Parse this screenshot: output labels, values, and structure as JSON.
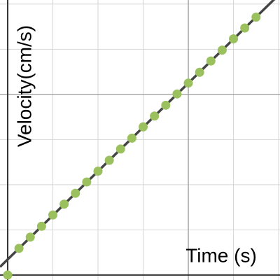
{
  "chart_data": {
    "type": "scatter",
    "xlabel": "Time (s)",
    "ylabel": "Velocity(cm/s)",
    "xlim": [
      -0.17,
      6.03
    ],
    "ylim": [
      -0.11,
      6.09
    ],
    "xticks": [
      0,
      1,
      2,
      3,
      4,
      5,
      6
    ],
    "yticks": [
      0,
      1,
      2,
      3,
      4,
      5,
      6
    ],
    "major_xticks": [
      4
    ],
    "major_yticks": [
      4
    ],
    "grid": true,
    "series": [
      {
        "type": "scatter",
        "color": "#9bc15e",
        "x": [
          0,
          0.25,
          0.5,
          0.75,
          1,
          1.25,
          1.5,
          1.75,
          2,
          2.25,
          2.5,
          2.75,
          3,
          3.25,
          3.5,
          3.75,
          4,
          4.25,
          4.5,
          4.75,
          5,
          5.25,
          5.5
        ],
        "values": [
          0,
          0.59,
          0.84,
          1.08,
          1.33,
          1.57,
          1.81,
          2.06,
          2.3,
          2.54,
          2.79,
          3.03,
          3.28,
          3.52,
          3.76,
          4.01,
          4.25,
          4.49,
          4.74,
          4.98,
          5.23,
          5.47,
          5.71
        ]
      },
      {
        "type": "line",
        "color": "#444444",
        "x": [
          -0.17,
          6.03
        ],
        "values": [
          0.18,
          6.23
        ]
      }
    ]
  }
}
